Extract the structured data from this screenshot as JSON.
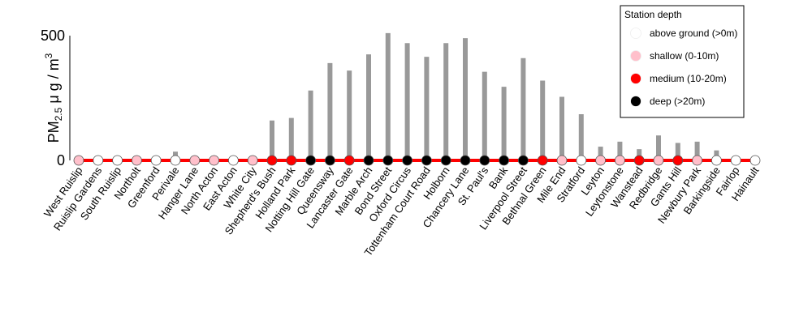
{
  "chart_data": {
    "type": "bar",
    "ylabel": {
      "main": "PM",
      "sub": "2.5",
      "unit": " μ g / m",
      "sup": "3"
    },
    "ylim": [
      0,
      500
    ],
    "yticks": [
      "0",
      "500"
    ],
    "line_color": "#ff0000",
    "bar_color": "#999999",
    "legend": {
      "title": "Station depth",
      "position": "top-right",
      "entries": [
        {
          "label": "above ground (>0m)",
          "color": "#ffffff"
        },
        {
          "label": "shallow (0-10m)",
          "color": "#ffc0cb"
        },
        {
          "label": "medium (10-20m)",
          "color": "#ff0000"
        },
        {
          "label": "deep (>20m)",
          "color": "#000000"
        }
      ]
    },
    "categories": [
      "West Ruislip",
      "Ruislip Gardens",
      "South Ruislip",
      "Northolt",
      "Greenford",
      "Perivale",
      "Hanger Lane",
      "North Acton",
      "East Acton",
      "White City",
      "Shepherd's Bush",
      "Holland Park",
      "Notting Hill Gate",
      "Queensway",
      "Lancaster Gate",
      "Marble Arch",
      "Bond Street",
      "Oxford Circus",
      "Tottenham Court Road",
      "Holborn",
      "Chancery Lane",
      "St. Paul's",
      "Bank",
      "Liverpool Street",
      "Bethnal Green",
      "Mile End",
      "Stratford",
      "Leyton",
      "Leytonstone",
      "Wanstead",
      "Redbridge",
      "Gants Hill",
      "Newbury Park",
      "Barkingside",
      "Fairlop",
      "Hainault"
    ],
    "values": [
      0,
      5,
      0,
      0,
      0,
      35,
      0,
      0,
      0,
      0,
      160,
      170,
      280,
      390,
      360,
      425,
      510,
      470,
      415,
      470,
      490,
      355,
      295,
      410,
      320,
      255,
      185,
      55,
      75,
      45,
      100,
      70,
      75,
      40,
      0,
      0
    ],
    "depth": [
      "shallow",
      "above",
      "above",
      "shallow",
      "above",
      "above",
      "shallow",
      "shallow",
      "above",
      "shallow",
      "medium",
      "medium",
      "deep",
      "deep",
      "medium",
      "deep",
      "deep",
      "deep",
      "deep",
      "deep",
      "deep",
      "deep",
      "deep",
      "deep",
      "medium",
      "shallow",
      "above",
      "shallow",
      "shallow",
      "medium",
      "shallow",
      "medium",
      "shallow",
      "above",
      "above",
      "above"
    ]
  }
}
